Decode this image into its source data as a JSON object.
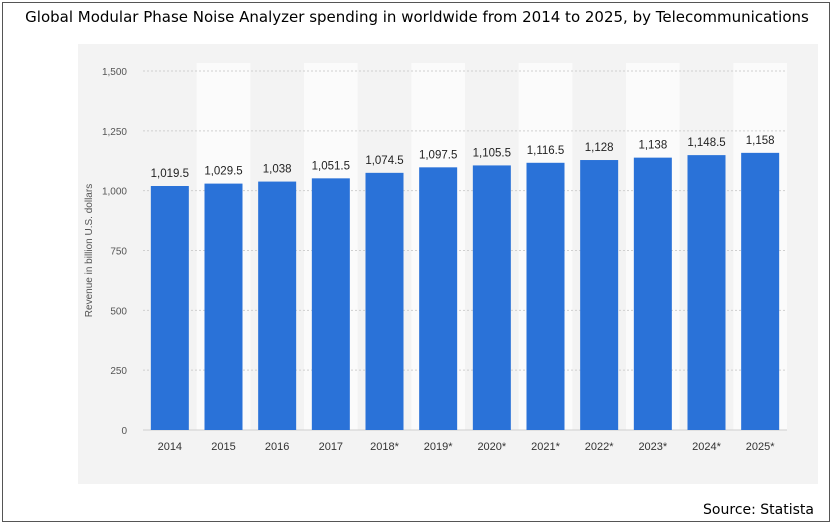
{
  "title": "Global Modular Phase Noise Analyzer spending in worldwide from 2014 to 2025, by Telecommunications",
  "source": "Source: Statista",
  "chart_data": {
    "type": "bar",
    "categories": [
      "2014",
      "2015",
      "2016",
      "2017",
      "2018*",
      "2019*",
      "2020*",
      "2021*",
      "2022*",
      "2023*",
      "2024*",
      "2025*"
    ],
    "values": [
      1019.5,
      1029.5,
      1038,
      1051.5,
      1074.5,
      1097.5,
      1105.5,
      1116.5,
      1128,
      1138,
      1148.5,
      1158
    ],
    "value_labels": [
      "1,019.5",
      "1,029.5",
      "1,038",
      "1,051.5",
      "1,074.5",
      "1,097.5",
      "1,105.5",
      "1,116.5",
      "1,128",
      "1,138",
      "1,148.5",
      "1,158"
    ],
    "ylabel": "Revenue in billion U.S. dollars",
    "xlabel": "",
    "ylim": [
      0,
      1500
    ],
    "yticks": [
      0,
      250,
      500,
      750,
      1000,
      1250,
      1500
    ],
    "ytick_labels": [
      "0",
      "250",
      "500",
      "750",
      "1,000",
      "1,250",
      "1,500"
    ],
    "grid": true,
    "bar_color": "#2a72d8"
  }
}
